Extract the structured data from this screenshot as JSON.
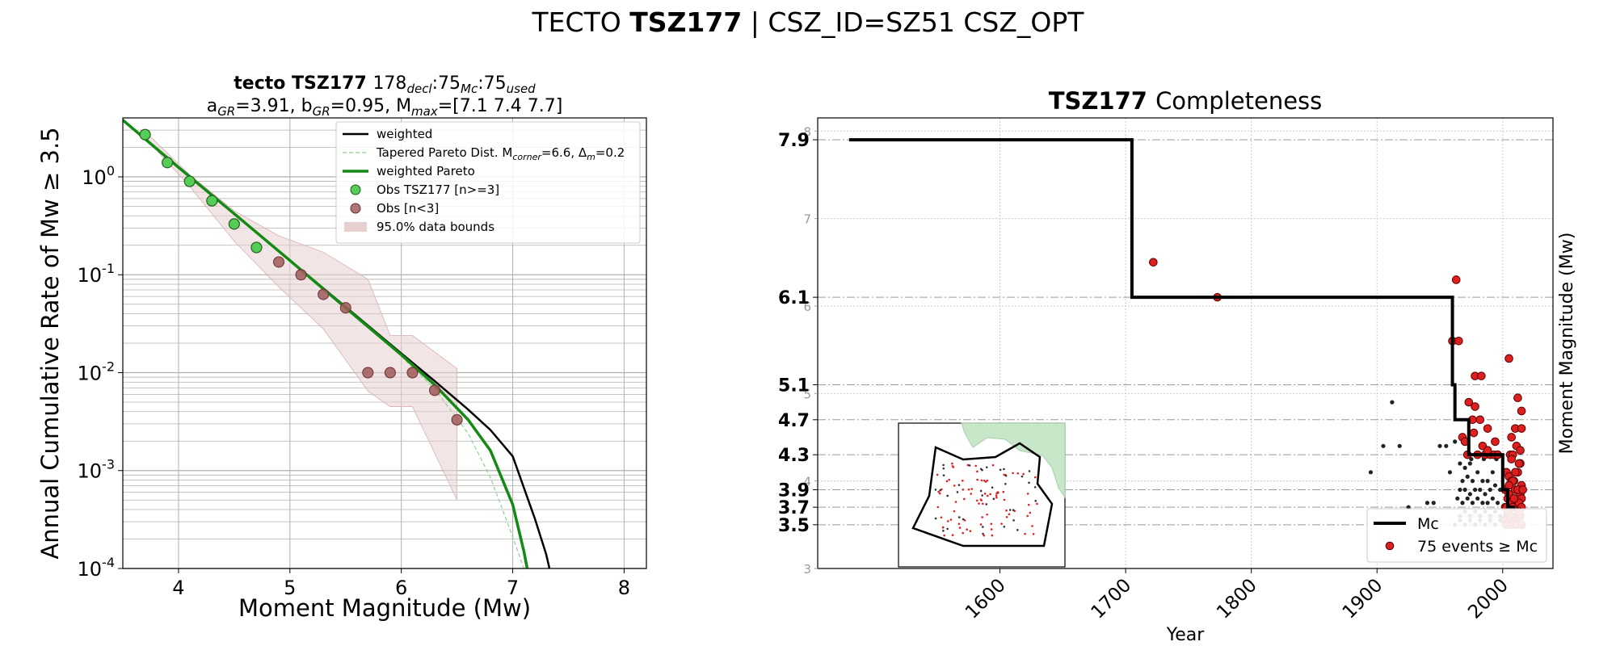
{
  "figure": {
    "title_prefix": "TECTO",
    "title_bold": "TSZ177",
    "title_suffix": "| CSZ_ID=SZ51 CSZ_OPT"
  },
  "chart_data": [
    {
      "type": "line",
      "title_bold": "tecto TSZ177",
      "title_line1_rest": "178",
      "title_sub_decl": "decl",
      "title_mc": ":75",
      "title_sub_mc": "Mc",
      "title_used": ":75",
      "title_sub_used": "used",
      "title_line2": "a_GR=3.91,  b_GR=0.95, M_max=[7.1 7.4 7.7]",
      "xlabel": "Moment Magnitude (Mw)",
      "ylabel": "Annual Cumulative Rate of Mw  ≥  3.5",
      "y_scale": "log",
      "xlim": [
        3.5,
        8.2
      ],
      "ylim": [
        0.0001,
        4.0
      ],
      "x_ticks": [
        4,
        5,
        6,
        7,
        8
      ],
      "y_tick_labels": [
        "10^0",
        "10^-1",
        "10^-2",
        "10^-3",
        "10^-4"
      ],
      "grid": true,
      "legend_placement": "top-right",
      "legend": [
        {
          "label": "weighted",
          "style": "black-line"
        },
        {
          "label": "Tapered Pareto Dist. M_corner=6.6, Δ_m=0.2",
          "style": "light-green-dashed"
        },
        {
          "label": "weighted Pareto",
          "style": "green-line"
        },
        {
          "label": "Obs TSZ177 [n>=3]",
          "style": "green-circle"
        },
        {
          "label": "Obs [n<3]",
          "style": "brown-circle"
        },
        {
          "label": "95.0% data bounds",
          "style": "pink-fill"
        }
      ],
      "series": [
        {
          "name": "Obs TSZ177 [n>=3]",
          "x": [
            3.7,
            3.9,
            4.1,
            4.3,
            4.5,
            4.7
          ],
          "y": [
            2.7,
            1.4,
            0.9,
            0.57,
            0.33,
            0.19
          ]
        },
        {
          "name": "Obs [n<3]",
          "x": [
            4.9,
            5.1,
            5.3,
            5.5,
            5.7,
            5.9,
            6.1,
            6.3,
            6.5
          ],
          "y": [
            0.135,
            0.1,
            0.063,
            0.046,
            0.01,
            0.01,
            0.01,
            0.0066,
            0.0033
          ]
        },
        {
          "name": "weighted",
          "x": [
            3.5,
            4.0,
            4.5,
            5.0,
            5.5,
            6.0,
            6.3,
            6.6,
            6.8,
            7.0,
            7.2,
            7.3,
            7.33
          ],
          "y": [
            3.8,
            1.25,
            0.42,
            0.14,
            0.047,
            0.0157,
            0.0082,
            0.0042,
            0.0026,
            0.0014,
            0.00032,
            0.00014,
            0.0001
          ]
        },
        {
          "name": "weighted Pareto",
          "x": [
            3.5,
            4.0,
            4.5,
            5.0,
            5.5,
            6.0,
            6.3,
            6.6,
            6.8,
            7.0,
            7.1,
            7.13
          ],
          "y": [
            3.8,
            1.25,
            0.42,
            0.14,
            0.046,
            0.0152,
            0.0075,
            0.0033,
            0.0016,
            0.00045,
            0.00015,
            0.0001
          ]
        },
        {
          "name": "Tapered Pareto Dist. M_corner=6.6, Δ_m=0.2",
          "x": [
            6.0,
            6.3,
            6.6,
            6.8,
            7.0,
            7.1
          ],
          "y": [
            0.0147,
            0.0068,
            0.0024,
            0.00085,
            0.00021,
            0.0001
          ]
        }
      ],
      "bounds_upper": {
        "x": [
          3.7,
          4.1,
          4.5,
          4.9,
          5.3,
          5.7,
          5.9,
          6.1,
          6.5,
          6.5
        ],
        "y": [
          2.9,
          1.05,
          0.45,
          0.25,
          0.17,
          0.09,
          0.024,
          0.024,
          0.011,
          0.0055
        ]
      },
      "bounds_lower": {
        "x": [
          3.7,
          4.1,
          4.5,
          4.9,
          5.3,
          5.7,
          5.9,
          6.1,
          6.5
        ],
        "y": [
          2.5,
          0.8,
          0.22,
          0.075,
          0.028,
          0.0065,
          0.0045,
          0.0045,
          0.0005
        ]
      }
    },
    {
      "type": "scatter",
      "title_bold": "TSZ177",
      "title_rest": "Completeness",
      "xlabel": "Year",
      "ylabel": "Moment Magnitude (Mw)",
      "xlim": [
        1455,
        2040
      ],
      "ylim": [
        3.0,
        8.15
      ],
      "x_ticks": [
        1600,
        1700,
        1800,
        1900,
        2000
      ],
      "y_ticks_minor": [
        3,
        4,
        5,
        6,
        7,
        8
      ],
      "mc_levels": [
        "7.9",
        "6.1",
        "5.1",
        "4.7",
        "4.3",
        "3.9",
        "3.7",
        "3.5"
      ],
      "grid": true,
      "legend_placement": "lower-right",
      "legend": [
        {
          "label": "Mc",
          "style": "black-line"
        },
        {
          "label": "75 events ≥  Mc",
          "style": "red-circle"
        }
      ],
      "mc_step": {
        "x": [
          1480,
          1705,
          1705,
          1960,
          1960,
          1962,
          1962,
          1973,
          1973,
          2000,
          2000,
          2004,
          2004,
          2010
        ],
        "y": [
          7.9,
          7.9,
          6.1,
          6.1,
          5.1,
          5.1,
          4.7,
          4.7,
          4.3,
          4.3,
          3.9,
          3.9,
          3.7,
          3.7
        ]
      },
      "events_ge_mc": {
        "x": [
          1722,
          1773,
          1963,
          1960,
          1978,
          1983,
          1973,
          1978,
          1965,
          1968,
          1976,
          1982,
          1988,
          1994,
          1972,
          1980,
          1986,
          1990,
          1996,
          1970,
          1977,
          1984,
          1988,
          1993,
          1996,
          2005,
          2012,
          2015,
          2007,
          2010,
          2014,
          2003,
          2006,
          2011,
          2015,
          2009,
          2013,
          2002,
          2005,
          2008,
          2012,
          2015,
          2004,
          2007,
          2010,
          2014,
          2002,
          2005,
          2008,
          2012,
          2015,
          2003,
          2006,
          2009,
          2013,
          2016,
          2004,
          2008,
          2012,
          2015,
          2002,
          2006,
          2010,
          2014,
          2003,
          2007,
          2011,
          2015,
          2004,
          2009,
          2013,
          2005,
          2010,
          2014,
          2007
        ],
        "y": [
          6.5,
          6.1,
          6.3,
          5.6,
          5.2,
          5.2,
          4.9,
          4.85,
          5.6,
          4.5,
          4.7,
          4.7,
          4.6,
          4.45,
          4.3,
          4.3,
          4.3,
          4.3,
          4.3,
          4.45,
          4.55,
          4.4,
          4.35,
          4.3,
          4.3,
          5.4,
          4.95,
          4.8,
          4.5,
          4.6,
          4.2,
          4.1,
          4.3,
          4.4,
          4.6,
          4.0,
          4.2,
          3.9,
          4.05,
          4.3,
          4.1,
          3.95,
          3.8,
          4.0,
          3.9,
          3.85,
          3.7,
          3.85,
          4.0,
          3.9,
          3.8,
          3.7,
          3.75,
          3.7,
          3.75,
          3.9,
          3.6,
          3.7,
          3.6,
          3.7,
          3.55,
          3.6,
          3.55,
          3.6,
          3.5,
          3.5,
          3.5,
          3.5,
          3.65,
          3.8,
          3.65,
          3.95,
          4.1,
          4.35,
          4.25
        ]
      },
      "events_below_mc": {
        "x": [
          1895,
          1912,
          1905,
          1918,
          1925,
          1940,
          1950,
          1955,
          1945,
          1958,
          1962,
          1966,
          1970,
          1974,
          1968,
          1972,
          1976,
          1980,
          1984,
          1988,
          1992,
          1966,
          1970,
          1974,
          1978,
          1982,
          1986,
          1990,
          1994,
          1998,
          1964,
          1968,
          1972,
          1976,
          1980,
          1984,
          1988,
          1992,
          1996,
          1966,
          1970,
          1974,
          1978,
          1982,
          1986,
          1990,
          1994,
          1998,
          1962,
          1966,
          1970,
          1974,
          1978,
          1982,
          1986,
          1990,
          1994,
          1998,
          1975,
          1985,
          1995
        ],
        "y": [
          4.1,
          4.9,
          4.4,
          4.4,
          3.7,
          3.75,
          4.4,
          4.4,
          3.75,
          4.1,
          4.45,
          4.2,
          4.15,
          4.2,
          4.0,
          4.05,
          4.0,
          4.1,
          4.0,
          4.0,
          4.1,
          3.9,
          3.9,
          3.85,
          3.9,
          3.9,
          3.85,
          3.9,
          3.95,
          3.9,
          3.8,
          3.75,
          3.8,
          3.75,
          3.8,
          3.75,
          3.75,
          3.8,
          3.75,
          3.6,
          3.65,
          3.6,
          3.65,
          3.6,
          3.65,
          3.6,
          3.65,
          3.6,
          3.5,
          3.55,
          3.5,
          3.55,
          3.5,
          3.55,
          3.5,
          3.55,
          3.5,
          3.55,
          4.25,
          4.25,
          4.25
        ]
      },
      "events_grey": {
        "x": [
          1968,
          1972,
          1976,
          1980,
          1984,
          1988,
          1992,
          1996,
          2000,
          2004,
          2008,
          2012,
          2016,
          1970,
          1974,
          1978,
          1982,
          1986,
          1990,
          1994,
          1998,
          2002,
          2006,
          2010,
          2014
        ],
        "y": [
          3.6,
          3.6,
          3.6,
          3.6,
          3.6,
          3.6,
          3.6,
          3.6,
          3.6,
          3.6,
          3.6,
          3.6,
          3.6,
          3.5,
          3.5,
          3.5,
          3.5,
          3.5,
          3.5,
          3.5,
          3.5,
          3.5,
          3.5,
          3.5,
          3.5
        ]
      }
    }
  ]
}
